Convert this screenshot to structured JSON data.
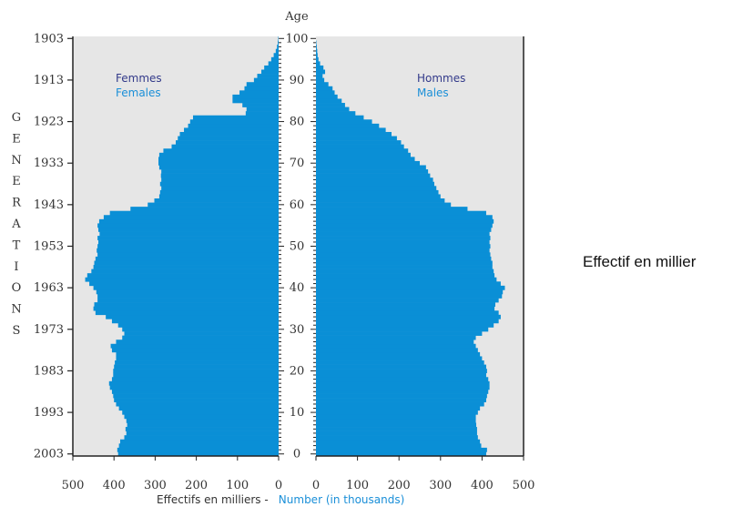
{
  "chart_data": {
    "type": "population-pyramid",
    "age_axis_label": "Age",
    "age_ticks": [
      0,
      10,
      20,
      30,
      40,
      50,
      60,
      70,
      80,
      90,
      100
    ],
    "age_tick_labels": [
      "0",
      "10",
      "20",
      "30",
      "40",
      "50",
      "60",
      "70",
      "80",
      "90",
      "100"
    ],
    "generation_ticks": [
      2003,
      1993,
      1983,
      1973,
      1963,
      1953,
      1943,
      1933,
      1923,
      1913,
      1903
    ],
    "generation_tick_labels": [
      "2003",
      "1993",
      "1983",
      "1973",
      "1963",
      "1953",
      "1943",
      "1933",
      "1923",
      "1913",
      "1903"
    ],
    "generations_label": [
      "G",
      "E",
      "N",
      "E",
      "R",
      "A",
      "T",
      "I",
      "O",
      "N",
      "S"
    ],
    "x_ticks_females": [
      "500",
      "400",
      "300",
      "200",
      "100",
      "0"
    ],
    "x_ticks_males": [
      "0",
      "100",
      "200",
      "300",
      "400",
      "500"
    ],
    "xlim": [
      0,
      500
    ],
    "xlabel_fr": "Effectifs en milliers -",
    "xlabel_en": "Number (in thousands)",
    "females_label_fr": "Femmes",
    "females_label_en": "Females",
    "males_label_fr": "Hommes",
    "males_label_en": "Males",
    "bar_color": "#0a8fd6",
    "background_color": "#e6e6e6",
    "series": [
      {
        "name": "Femmes / Females",
        "ages": [
          0,
          1,
          2,
          3,
          4,
          5,
          6,
          7,
          8,
          9,
          10,
          11,
          12,
          13,
          14,
          15,
          16,
          17,
          18,
          19,
          20,
          21,
          22,
          23,
          24,
          25,
          26,
          27,
          28,
          29,
          30,
          31,
          32,
          33,
          34,
          35,
          36,
          37,
          38,
          39,
          40,
          41,
          42,
          43,
          44,
          45,
          46,
          47,
          48,
          49,
          50,
          51,
          52,
          53,
          54,
          55,
          56,
          57,
          58,
          59,
          60,
          61,
          62,
          63,
          64,
          65,
          66,
          67,
          68,
          69,
          70,
          71,
          72,
          73,
          74,
          75,
          76,
          77,
          78,
          79,
          80,
          81,
          82,
          83,
          84,
          85,
          86,
          87,
          88,
          89,
          90,
          91,
          92,
          93,
          94,
          95,
          96,
          97,
          98,
          99,
          100
        ],
        "values": [
          390,
          392,
          388,
          385,
          375,
          370,
          372,
          368,
          370,
          375,
          380,
          388,
          395,
          400,
          402,
          405,
          410,
          412,
          405,
          402,
          402,
          400,
          398,
          395,
          395,
          405,
          408,
          395,
          380,
          375,
          380,
          390,
          405,
          420,
          445,
          450,
          448,
          440,
          440,
          443,
          450,
          460,
          470,
          465,
          455,
          450,
          448,
          445,
          440,
          442,
          440,
          438,
          440,
          435,
          438,
          440,
          436,
          425,
          410,
          360,
          318,
          302,
          290,
          288,
          285,
          288,
          285,
          286,
          285,
          290,
          292,
          292,
          290,
          280,
          260,
          250,
          245,
          240,
          230,
          220,
          215,
          208,
          80,
          78,
          88,
          112,
          112,
          95,
          83,
          78,
          60,
          52,
          42,
          35,
          25,
          18,
          12,
          7,
          4,
          2,
          1
        ]
      },
      {
        "name": "Hommes / Males",
        "ages": [
          0,
          1,
          2,
          3,
          4,
          5,
          6,
          7,
          8,
          9,
          10,
          11,
          12,
          13,
          14,
          15,
          16,
          17,
          18,
          19,
          20,
          21,
          22,
          23,
          24,
          25,
          26,
          27,
          28,
          29,
          30,
          31,
          32,
          33,
          34,
          35,
          36,
          37,
          38,
          39,
          40,
          41,
          42,
          43,
          44,
          45,
          46,
          47,
          48,
          49,
          50,
          51,
          52,
          53,
          54,
          55,
          56,
          57,
          58,
          59,
          60,
          61,
          62,
          63,
          64,
          65,
          66,
          67,
          68,
          69,
          70,
          71,
          72,
          73,
          74,
          75,
          76,
          77,
          78,
          79,
          80,
          81,
          82,
          83,
          84,
          85,
          86,
          87,
          88,
          89,
          90,
          91,
          92,
          93,
          94,
          95,
          96,
          97,
          98,
          99,
          100
        ],
        "values": [
          410,
          412,
          398,
          395,
          390,
          388,
          388,
          386,
          385,
          385,
          390,
          395,
          405,
          410,
          412,
          415,
          418,
          418,
          415,
          410,
          412,
          410,
          405,
          400,
          395,
          390,
          385,
          380,
          385,
          400,
          415,
          428,
          440,
          445,
          440,
          430,
          432,
          440,
          448,
          450,
          455,
          445,
          435,
          430,
          428,
          425,
          425,
          422,
          420,
          418,
          420,
          418,
          420,
          418,
          422,
          425,
          428,
          425,
          410,
          365,
          325,
          310,
          300,
          295,
          290,
          285,
          282,
          275,
          270,
          265,
          250,
          238,
          228,
          222,
          212,
          205,
          195,
          182,
          168,
          152,
          135,
          115,
          95,
          80,
          70,
          62,
          52,
          45,
          40,
          30,
          20,
          16,
          22,
          18,
          10,
          6,
          4,
          3,
          2,
          1,
          0
        ]
      }
    ]
  },
  "side_note": "Effectif en millier"
}
